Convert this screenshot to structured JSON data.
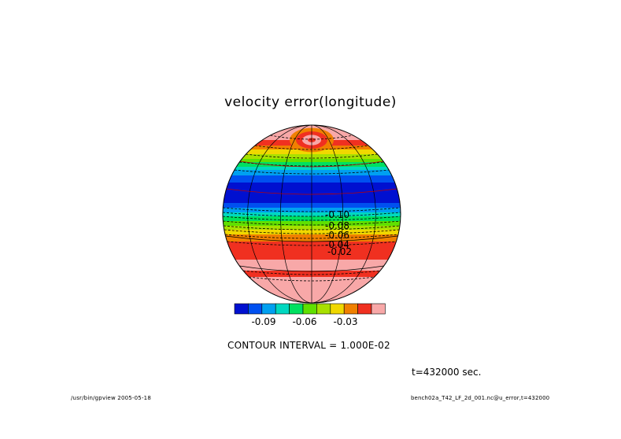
{
  "chart_data": {
    "type": "heatmap",
    "title": "velocity error(longitude)",
    "projection": "orthographic globe",
    "colorbar": {
      "colors": [
        "#0010d0",
        "#0050f0",
        "#00a0f0",
        "#00d8c0",
        "#00e060",
        "#60e000",
        "#a8e000",
        "#f0d800",
        "#f08000",
        "#f03020",
        "#f8a8a8"
      ],
      "tick_labels": [
        "-0.09",
        "-0.06",
        "-0.03"
      ]
    },
    "contour_labels": [
      "-0.10",
      "-0.08",
      "-0.06",
      "-0.04",
      "-0.02"
    ],
    "contour_interval": "CONTOUR INTERVAL = 1.000E-02",
    "time": "t=432000 sec."
  },
  "footer": {
    "left": "/usr/bin/gpview 2005-05-18",
    "right": "bench02a_T42_LF_2d_001.nc@u_error,t=432000"
  }
}
